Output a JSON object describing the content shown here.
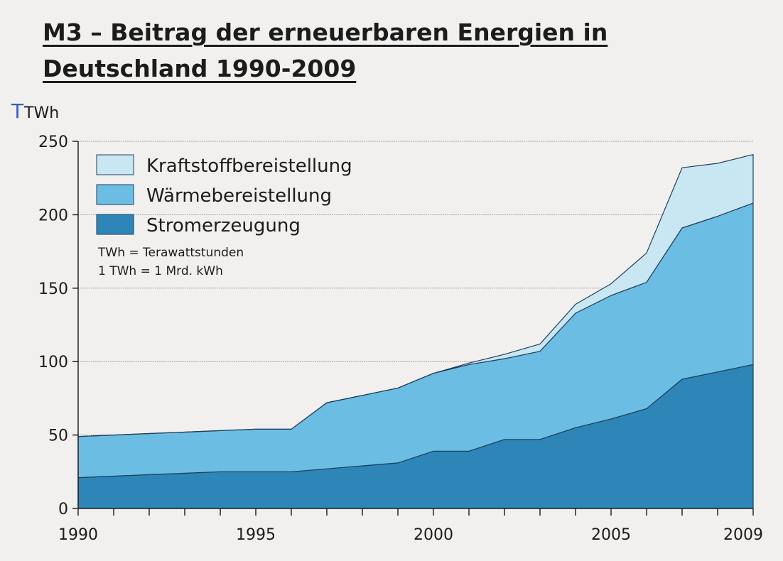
{
  "title": {
    "line1": "M3 – Beitrag der erneuerbaren Energien in",
    "line2": "Deutschland 1990-2009"
  },
  "chart_data": {
    "type": "area",
    "stacked": true,
    "ylabel": "TWh",
    "ylabel_prefix_handwritten": "T",
    "ylim": [
      0,
      250
    ],
    "yticks": [
      0,
      50,
      100,
      150,
      200,
      250
    ],
    "xlim": [
      1990,
      2009
    ],
    "xtick_labels": [
      1990,
      1995,
      2000,
      2005,
      2009
    ],
    "x": [
      1990,
      1991,
      1992,
      1993,
      1994,
      1995,
      1996,
      1997,
      1998,
      1999,
      2000,
      2001,
      2002,
      2003,
      2004,
      2005,
      2006,
      2007,
      2008,
      2009
    ],
    "series": [
      {
        "name": "Stromerzeugung",
        "color": "#2d86b7",
        "values": [
          21,
          22,
          23,
          24,
          25,
          25,
          25,
          27,
          29,
          31,
          39,
          39,
          47,
          47,
          55,
          61,
          68,
          88,
          93,
          98
        ]
      },
      {
        "name": "Wärmebereistellung",
        "color": "#6cbde3",
        "values": [
          28,
          28,
          28,
          28,
          28,
          29,
          29,
          45,
          48,
          51,
          53,
          59,
          55,
          60,
          78,
          84,
          86,
          103,
          106,
          110
        ]
      },
      {
        "name": "Kraftstoffbereistellung",
        "color": "#c9e6f3",
        "values": [
          0,
          0,
          0,
          0,
          0,
          0,
          0,
          0,
          0,
          0,
          0,
          1,
          3,
          5,
          6,
          8,
          20,
          41,
          36,
          33
        ]
      }
    ],
    "legend": {
      "position": "top-left",
      "entries": [
        "Kraftstoffbereistellung",
        "Wärmebereistellung",
        "Stromerzeugung"
      ]
    },
    "notes": [
      "TWh = Terawattstunden",
      "1 TWh = 1 Mrd. kWh"
    ],
    "grid": "horizontal"
  }
}
